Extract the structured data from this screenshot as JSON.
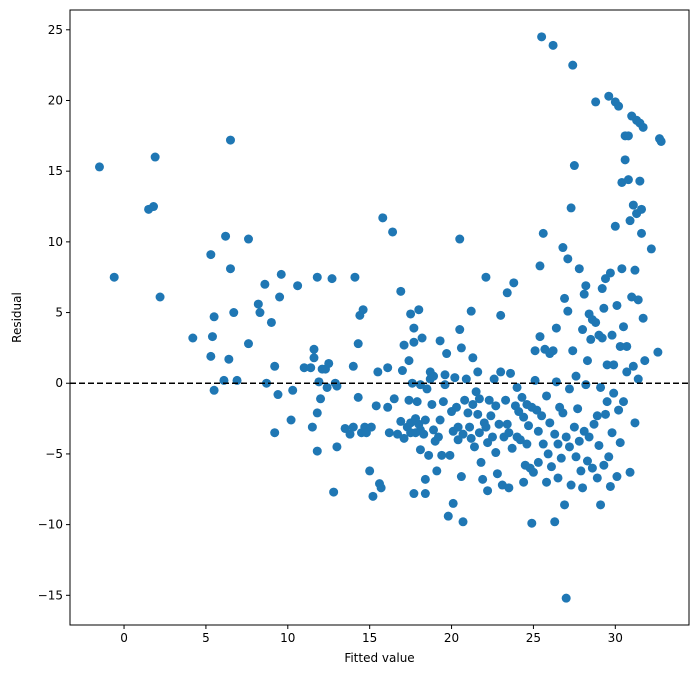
{
  "chart_data": {
    "type": "scatter",
    "title": "",
    "xlabel": "Fitted value",
    "ylabel": "Residual",
    "xlim": [
      -3.3,
      34.5
    ],
    "ylim": [
      -17.1,
      26.4
    ],
    "xticks": [
      0,
      5,
      10,
      15,
      20,
      25,
      30
    ],
    "yticks": [
      -15,
      -10,
      -5,
      0,
      5,
      10,
      15,
      20,
      25
    ],
    "grid": false,
    "reference_line": {
      "y": 0,
      "style": "dashed",
      "color": "#000000"
    },
    "marker_color": "#1f77b4",
    "points": [
      [
        -1.5,
        15.3
      ],
      [
        -0.6,
        7.5
      ],
      [
        1.5,
        12.3
      ],
      [
        1.8,
        12.5
      ],
      [
        1.9,
        16.0
      ],
      [
        2.2,
        6.1
      ],
      [
        4.2,
        3.2
      ],
      [
        5.3,
        9.1
      ],
      [
        5.5,
        4.7
      ],
      [
        5.4,
        3.3
      ],
      [
        5.3,
        1.9
      ],
      [
        5.5,
        -0.5
      ],
      [
        6.1,
        0.2
      ],
      [
        6.2,
        10.4
      ],
      [
        6.5,
        17.2
      ],
      [
        6.5,
        8.1
      ],
      [
        6.4,
        1.7
      ],
      [
        6.7,
        5.0
      ],
      [
        6.9,
        0.2
      ],
      [
        7.6,
        10.2
      ],
      [
        7.6,
        2.8
      ],
      [
        8.2,
        5.6
      ],
      [
        8.3,
        5.0
      ],
      [
        8.6,
        7.0
      ],
      [
        8.7,
        0.0
      ],
      [
        9.0,
        4.3
      ],
      [
        9.2,
        1.2
      ],
      [
        9.2,
        -3.5
      ],
      [
        9.6,
        7.7
      ],
      [
        9.5,
        6.1
      ],
      [
        9.4,
        -0.8
      ],
      [
        10.3,
        -0.5
      ],
      [
        10.6,
        6.9
      ],
      [
        10.2,
        -2.6
      ],
      [
        11.0,
        1.1
      ],
      [
        11.4,
        1.1
      ],
      [
        11.6,
        2.4
      ],
      [
        11.6,
        1.8
      ],
      [
        11.8,
        7.5
      ],
      [
        11.5,
        -3.1
      ],
      [
        11.8,
        -4.8
      ],
      [
        11.9,
        0.1
      ],
      [
        11.8,
        -2.1
      ],
      [
        12.0,
        -1.1
      ],
      [
        12.1,
        1.0
      ],
      [
        12.3,
        1.0
      ],
      [
        12.4,
        -0.3
      ],
      [
        12.5,
        1.4
      ],
      [
        12.7,
        7.4
      ],
      [
        12.8,
        -7.7
      ],
      [
        13.0,
        -4.5
      ],
      [
        12.9,
        0.0
      ],
      [
        13.0,
        -0.2
      ],
      [
        13.5,
        -3.2
      ],
      [
        13.8,
        -3.6
      ],
      [
        14.0,
        1.2
      ],
      [
        14.1,
        7.5
      ],
      [
        14.0,
        -3.1
      ],
      [
        14.3,
        2.8
      ],
      [
        14.3,
        -1.0
      ],
      [
        14.4,
        4.8
      ],
      [
        14.6,
        5.2
      ],
      [
        14.5,
        -3.5
      ],
      [
        14.7,
        -3.1
      ],
      [
        14.8,
        -3.5
      ],
      [
        15.0,
        -6.2
      ],
      [
        15.1,
        -3.1
      ],
      [
        15.2,
        -8.0
      ],
      [
        15.4,
        -1.6
      ],
      [
        15.5,
        0.8
      ],
      [
        15.6,
        -7.1
      ],
      [
        15.7,
        -7.4
      ],
      [
        15.8,
        11.7
      ],
      [
        16.1,
        -1.7
      ],
      [
        16.1,
        1.1
      ],
      [
        16.2,
        -3.5
      ],
      [
        16.4,
        10.7
      ],
      [
        16.5,
        -1.1
      ],
      [
        16.7,
        -3.6
      ],
      [
        16.9,
        6.5
      ],
      [
        16.9,
        -2.7
      ],
      [
        17.0,
        0.9
      ],
      [
        17.1,
        -3.9
      ],
      [
        17.1,
        2.7
      ],
      [
        17.3,
        -3.1
      ],
      [
        17.4,
        1.6
      ],
      [
        17.4,
        -1.2
      ],
      [
        17.5,
        -2.8
      ],
      [
        17.5,
        4.9
      ],
      [
        17.5,
        -3.5
      ],
      [
        17.6,
        0.0
      ],
      [
        17.7,
        3.9
      ],
      [
        17.7,
        2.9
      ],
      [
        17.7,
        -7.8
      ],
      [
        17.8,
        -3.5
      ],
      [
        17.8,
        -2.5
      ],
      [
        17.9,
        -1.3
      ],
      [
        18.0,
        -2.9
      ],
      [
        18.0,
        5.2
      ],
      [
        18.1,
        -3.3
      ],
      [
        18.1,
        -0.1
      ],
      [
        18.1,
        -4.7
      ],
      [
        18.2,
        3.2
      ],
      [
        18.3,
        -3.6
      ],
      [
        18.4,
        -2.6
      ],
      [
        18.4,
        -6.8
      ],
      [
        18.4,
        -7.8
      ],
      [
        18.5,
        -0.4
      ],
      [
        18.6,
        -5.1
      ],
      [
        18.7,
        0.8
      ],
      [
        18.7,
        0.3
      ],
      [
        18.8,
        -1.5
      ],
      [
        18.9,
        -3.3
      ],
      [
        18.9,
        0.5
      ],
      [
        19.0,
        -4.1
      ],
      [
        19.1,
        -6.2
      ],
      [
        19.2,
        -3.8
      ],
      [
        19.3,
        3.0
      ],
      [
        19.3,
        -2.6
      ],
      [
        19.4,
        -5.1
      ],
      [
        19.5,
        -1.3
      ],
      [
        19.6,
        -0.1
      ],
      [
        19.6,
        0.6
      ],
      [
        19.7,
        2.1
      ],
      [
        19.8,
        -9.4
      ],
      [
        19.9,
        -5.1
      ],
      [
        20.0,
        -2.0
      ],
      [
        20.1,
        -3.4
      ],
      [
        20.1,
        -8.5
      ],
      [
        20.2,
        0.4
      ],
      [
        20.3,
        -1.7
      ],
      [
        20.4,
        -4.0
      ],
      [
        20.4,
        -3.1
      ],
      [
        20.5,
        10.2
      ],
      [
        20.5,
        3.8
      ],
      [
        20.6,
        -6.6
      ],
      [
        20.6,
        2.5
      ],
      [
        20.7,
        -3.6
      ],
      [
        20.7,
        -9.8
      ],
      [
        20.8,
        -1.2
      ],
      [
        20.9,
        0.3
      ],
      [
        21.0,
        -2.1
      ],
      [
        21.1,
        -3.1
      ],
      [
        21.2,
        5.1
      ],
      [
        21.2,
        -3.9
      ],
      [
        21.3,
        -1.5
      ],
      [
        21.3,
        1.8
      ],
      [
        21.4,
        -4.5
      ],
      [
        21.5,
        -0.6
      ],
      [
        21.6,
        -2.2
      ],
      [
        21.6,
        0.8
      ],
      [
        21.7,
        -1.1
      ],
      [
        21.7,
        -3.5
      ],
      [
        21.8,
        -5.6
      ],
      [
        21.9,
        -6.8
      ],
      [
        22.0,
        -2.8
      ],
      [
        22.1,
        -3.1
      ],
      [
        22.1,
        7.5
      ],
      [
        22.2,
        -4.2
      ],
      [
        22.2,
        -7.6
      ],
      [
        22.3,
        -1.2
      ],
      [
        22.4,
        -2.3
      ],
      [
        22.5,
        -3.8
      ],
      [
        22.6,
        0.3
      ],
      [
        22.7,
        -1.6
      ],
      [
        22.7,
        -4.9
      ],
      [
        22.8,
        -6.4
      ],
      [
        22.9,
        -2.9
      ],
      [
        23.0,
        4.8
      ],
      [
        23.0,
        0.8
      ],
      [
        23.1,
        -7.2
      ],
      [
        23.2,
        -3.8
      ],
      [
        23.3,
        -1.2
      ],
      [
        23.4,
        -2.9
      ],
      [
        23.4,
        6.4
      ],
      [
        23.5,
        -3.5
      ],
      [
        23.5,
        -7.4
      ],
      [
        23.6,
        0.7
      ],
      [
        23.7,
        -4.6
      ],
      [
        23.8,
        7.1
      ],
      [
        23.9,
        -1.6
      ],
      [
        24.0,
        -3.8
      ],
      [
        24.0,
        -0.3
      ],
      [
        24.1,
        -2.0
      ],
      [
        24.2,
        -4.0
      ],
      [
        24.3,
        -1.0
      ],
      [
        24.4,
        -2.4
      ],
      [
        24.4,
        -7.0
      ],
      [
        24.5,
        -5.8
      ],
      [
        24.6,
        -1.5
      ],
      [
        24.6,
        -4.3
      ],
      [
        24.7,
        -3.0
      ],
      [
        24.8,
        -6.0
      ],
      [
        24.9,
        -1.7
      ],
      [
        24.9,
        -9.9
      ],
      [
        25.0,
        -6.3
      ],
      [
        25.1,
        0.2
      ],
      [
        25.1,
        2.3
      ],
      [
        25.2,
        -1.9
      ],
      [
        25.3,
        -5.6
      ],
      [
        25.3,
        -3.4
      ],
      [
        25.4,
        8.3
      ],
      [
        25.4,
        3.3
      ],
      [
        25.5,
        24.5
      ],
      [
        25.5,
        -2.3
      ],
      [
        25.6,
        10.6
      ],
      [
        25.6,
        -4.3
      ],
      [
        25.7,
        2.4
      ],
      [
        25.8,
        -7.0
      ],
      [
        25.8,
        -0.9
      ],
      [
        25.9,
        -5.0
      ],
      [
        26.0,
        2.1
      ],
      [
        26.0,
        -2.8
      ],
      [
        26.1,
        -5.9
      ],
      [
        26.2,
        23.9
      ],
      [
        26.2,
        2.3
      ],
      [
        26.3,
        -3.6
      ],
      [
        26.3,
        -9.8
      ],
      [
        26.4,
        0.1
      ],
      [
        26.4,
        3.9
      ],
      [
        26.5,
        -6.7
      ],
      [
        26.5,
        -4.3
      ],
      [
        26.6,
        -1.7
      ],
      [
        26.7,
        -5.3
      ],
      [
        26.8,
        9.6
      ],
      [
        26.8,
        -2.1
      ],
      [
        26.9,
        -8.6
      ],
      [
        26.9,
        6.0
      ],
      [
        27.0,
        -15.2
      ],
      [
        27.0,
        -3.8
      ],
      [
        27.1,
        5.1
      ],
      [
        27.1,
        8.8
      ],
      [
        27.2,
        -0.4
      ],
      [
        27.2,
        -4.5
      ],
      [
        27.3,
        12.4
      ],
      [
        27.3,
        -7.2
      ],
      [
        27.4,
        22.5
      ],
      [
        27.4,
        2.3
      ],
      [
        27.5,
        15.4
      ],
      [
        27.5,
        -3.1
      ],
      [
        27.6,
        -5.2
      ],
      [
        27.6,
        0.5
      ],
      [
        27.7,
        -1.8
      ],
      [
        27.8,
        8.1
      ],
      [
        27.8,
        -4.1
      ],
      [
        27.9,
        -6.2
      ],
      [
        28.0,
        3.8
      ],
      [
        28.0,
        -7.4
      ],
      [
        28.1,
        6.3
      ],
      [
        28.1,
        -3.4
      ],
      [
        28.2,
        6.9
      ],
      [
        28.2,
        -0.1
      ],
      [
        28.3,
        -5.5
      ],
      [
        28.3,
        1.6
      ],
      [
        28.4,
        4.9
      ],
      [
        28.4,
        -3.8
      ],
      [
        28.5,
        3.1
      ],
      [
        28.6,
        -6.0
      ],
      [
        28.6,
        4.5
      ],
      [
        28.7,
        -2.9
      ],
      [
        28.8,
        4.3
      ],
      [
        28.8,
        19.9
      ],
      [
        28.9,
        -6.7
      ],
      [
        28.9,
        -2.3
      ],
      [
        29.0,
        3.4
      ],
      [
        29.0,
        -4.4
      ],
      [
        29.1,
        -8.6
      ],
      [
        29.1,
        -0.3
      ],
      [
        29.2,
        3.2
      ],
      [
        29.2,
        6.7
      ],
      [
        29.3,
        -5.8
      ],
      [
        29.3,
        5.3
      ],
      [
        29.4,
        -2.2
      ],
      [
        29.4,
        7.4
      ],
      [
        29.5,
        -1.3
      ],
      [
        29.5,
        1.3
      ],
      [
        29.6,
        20.3
      ],
      [
        29.6,
        -5.2
      ],
      [
        29.7,
        -7.3
      ],
      [
        29.7,
        7.8
      ],
      [
        29.8,
        3.4
      ],
      [
        29.8,
        -3.5
      ],
      [
        29.9,
        1.3
      ],
      [
        29.9,
        -0.7
      ],
      [
        30.0,
        19.9
      ],
      [
        30.0,
        11.1
      ],
      [
        30.1,
        -6.6
      ],
      [
        30.1,
        5.5
      ],
      [
        30.2,
        19.6
      ],
      [
        30.2,
        -1.9
      ],
      [
        30.3,
        2.6
      ],
      [
        30.3,
        -4.2
      ],
      [
        30.4,
        8.1
      ],
      [
        30.4,
        14.2
      ],
      [
        30.5,
        -1.3
      ],
      [
        30.5,
        4.0
      ],
      [
        30.6,
        15.8
      ],
      [
        30.6,
        17.5
      ],
      [
        30.7,
        0.8
      ],
      [
        30.7,
        2.6
      ],
      [
        30.8,
        17.5
      ],
      [
        30.8,
        14.4
      ],
      [
        30.9,
        -6.3
      ],
      [
        30.9,
        11.5
      ],
      [
        31.0,
        18.9
      ],
      [
        31.0,
        6.1
      ],
      [
        31.1,
        12.6
      ],
      [
        31.1,
        1.2
      ],
      [
        31.2,
        -2.8
      ],
      [
        31.2,
        8.0
      ],
      [
        31.3,
        12.0
      ],
      [
        31.3,
        18.6
      ],
      [
        31.4,
        0.3
      ],
      [
        31.4,
        5.9
      ],
      [
        31.5,
        18.4
      ],
      [
        31.5,
        14.3
      ],
      [
        31.6,
        12.3
      ],
      [
        31.6,
        10.6
      ],
      [
        31.7,
        18.1
      ],
      [
        31.7,
        4.6
      ],
      [
        31.8,
        1.6
      ],
      [
        32.2,
        9.5
      ],
      [
        32.6,
        2.2
      ],
      [
        32.7,
        17.3
      ],
      [
        32.8,
        17.1
      ]
    ]
  }
}
